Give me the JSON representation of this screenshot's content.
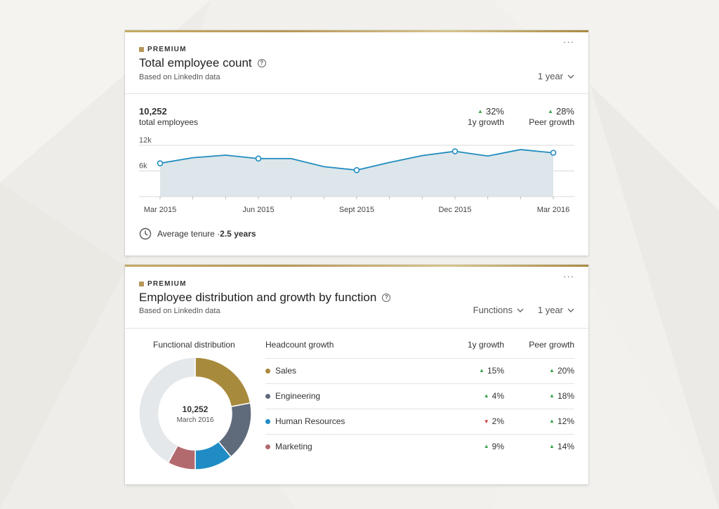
{
  "card1": {
    "more_label": "···",
    "premium_label": "PREMIUM",
    "title": "Total employee count",
    "subtitle": "Based on LinkedIn data",
    "range_dropdown": "1 year",
    "total_value": "10,252",
    "total_label": "total employees",
    "growth_1y": {
      "value": "32%",
      "label": "1y growth",
      "direction": "up"
    },
    "growth_peer": {
      "value": "28%",
      "label": "Peer growth",
      "direction": "up"
    },
    "tenure_label": "Average tenure · ",
    "tenure_value": "2.5 years",
    "icons": {
      "help": "help-icon",
      "more": "more-icon",
      "tenure": "clock-icon",
      "chevron": "chevron-down-icon"
    }
  },
  "chart_data": {
    "type": "area",
    "x": [
      "Mar 2015",
      "Apr 2015",
      "May 2015",
      "Jun 2015",
      "Jul 2015",
      "Aug 2015",
      "Sept 2015",
      "Oct 2015",
      "Nov 2015",
      "Dec 2015",
      "Jan 2016",
      "Feb 2016",
      "Mar 2016"
    ],
    "values": [
      7800,
      9100,
      9700,
      8900,
      8900,
      7000,
      6200,
      8000,
      9600,
      10600,
      9500,
      11000,
      10252
    ],
    "markers_at": [
      "Mar 2015",
      "Jun 2015",
      "Sept 2015",
      "Dec 2015",
      "Mar 2016"
    ],
    "x_tick_labels": [
      "Mar 2015",
      "Jun 2015",
      "Sept 2015",
      "Dec 2015",
      "Mar 2016"
    ],
    "y_tick_labels": [
      "12k",
      "6k"
    ],
    "y_ticks": [
      12000,
      6000
    ],
    "ylim": [
      0,
      12000
    ],
    "colors": {
      "line": "#1f8cbf",
      "fill": "#dde6ea",
      "grid": "#d9d9d9"
    }
  },
  "card2": {
    "more_label": "···",
    "premium_label": "PREMIUM",
    "title": "Employee distribution and growth by function",
    "subtitle": "Based on LinkedIn data",
    "functions_dropdown": "Functions",
    "range_dropdown": "1 year",
    "dist_title": "Functional distribution",
    "center_value": "10,252",
    "center_date": "March 2016",
    "table_headers": {
      "name": "Headcount growth",
      "growth_1y": "1y growth",
      "growth_peer": "Peer growth"
    },
    "rows": [
      {
        "name": "Sales",
        "color": "#a88a3c",
        "growth_1y": "15%",
        "dir_1y": "up",
        "growth_peer": "20%",
        "dir_peer": "up"
      },
      {
        "name": "Engineering",
        "color": "#5f6b7b",
        "growth_1y": "4%",
        "dir_1y": "up",
        "growth_peer": "18%",
        "dir_peer": "up"
      },
      {
        "name": "Human Resources",
        "color": "#1f8cc6",
        "growth_1y": "2%",
        "dir_1y": "down",
        "growth_peer": "12%",
        "dir_peer": "up"
      },
      {
        "name": "Marketing",
        "color": "#b26a6f",
        "growth_1y": "9%",
        "dir_1y": "up",
        "growth_peer": "14%",
        "dir_peer": "up"
      }
    ],
    "distribution_fractions": [
      0.22,
      0.17,
      0.11,
      0.08,
      0.42
    ],
    "distribution_colors": [
      "#a88a3c",
      "#5f6b7b",
      "#1f8cc6",
      "#b26a6f",
      "#e4e8eb"
    ]
  }
}
